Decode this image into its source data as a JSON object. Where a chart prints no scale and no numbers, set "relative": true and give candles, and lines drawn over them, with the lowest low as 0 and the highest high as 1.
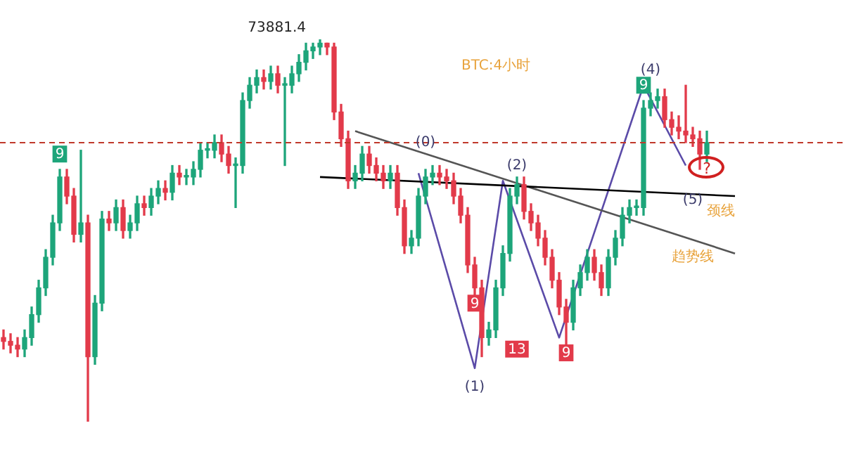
{
  "chart_data": {
    "type": "candlestick",
    "relative": true,
    "legend": false,
    "categories": [
      null,
      null,
      null,
      null,
      null,
      null,
      null,
      null,
      null,
      null,
      null,
      null,
      null,
      null,
      null,
      null,
      null,
      null,
      null,
      null,
      null,
      null,
      null,
      null,
      null,
      null,
      null,
      null,
      null,
      null,
      null,
      null,
      null,
      null,
      null,
      null,
      null,
      null,
      null,
      null,
      null,
      null,
      null,
      null,
      null,
      null,
      null,
      null,
      null,
      null,
      null,
      null,
      null,
      null,
      null,
      null,
      null,
      null,
      null,
      null,
      null,
      null,
      null,
      null,
      null,
      null,
      null,
      null,
      null,
      null,
      null,
      null,
      null,
      null,
      null,
      null,
      null,
      null,
      null,
      null,
      null,
      null,
      null,
      null,
      null,
      null,
      null,
      null,
      null,
      null,
      null,
      null,
      null,
      null,
      null,
      null,
      null,
      null,
      null,
      null,
      null,
      null,
      null,
      null,
      null,
      null,
      null,
      null,
      null,
      null,
      null,
      null,
      null,
      null,
      null,
      null,
      null,
      null,
      null,
      null
    ],
    "ohlc": [
      [
        0.22,
        0.24,
        0.19,
        0.21
      ],
      [
        0.21,
        0.23,
        0.18,
        0.2
      ],
      [
        0.2,
        0.22,
        0.17,
        0.19
      ],
      [
        0.19,
        0.24,
        0.17,
        0.22
      ],
      [
        0.22,
        0.3,
        0.2,
        0.28
      ],
      [
        0.28,
        0.37,
        0.26,
        0.35
      ],
      [
        0.35,
        0.45,
        0.33,
        0.43
      ],
      [
        0.43,
        0.54,
        0.41,
        0.52
      ],
      [
        0.52,
        0.66,
        0.5,
        0.64
      ],
      [
        0.64,
        0.66,
        0.57,
        0.59
      ],
      [
        0.59,
        0.61,
        0.47,
        0.49
      ],
      [
        0.49,
        0.71,
        0.47,
        0.52
      ],
      [
        0.52,
        0.54,
        0,
        0.17
      ],
      [
        0.17,
        0.33,
        0.15,
        0.31
      ],
      [
        0.31,
        0.55,
        0.29,
        0.53
      ],
      [
        0.53,
        0.55,
        0.5,
        0.52
      ],
      [
        0.52,
        0.58,
        0.5,
        0.56
      ],
      [
        0.56,
        0.58,
        0.48,
        0.5
      ],
      [
        0.5,
        0.54,
        0.48,
        0.52
      ],
      [
        0.52,
        0.59,
        0.5,
        0.57
      ],
      [
        0.57,
        0.59,
        0.54,
        0.56
      ],
      [
        0.56,
        0.61,
        0.54,
        0.59
      ],
      [
        0.59,
        0.63,
        0.57,
        0.61
      ],
      [
        0.61,
        0.63,
        0.58,
        0.6
      ],
      [
        0.6,
        0.67,
        0.58,
        0.65
      ],
      [
        0.65,
        0.67,
        0.62,
        0.64
      ],
      [
        0.64,
        0.66,
        0.62,
        0.64
      ],
      [
        0.64,
        0.68,
        0.62,
        0.66
      ],
      [
        0.66,
        0.73,
        0.64,
        0.71
      ],
      [
        0.71,
        0.73,
        0.69,
        0.71
      ],
      [
        0.71,
        0.75,
        0.69,
        0.73
      ],
      [
        0.73,
        0.75,
        0.68,
        0.7
      ],
      [
        0.7,
        0.72,
        0.65,
        0.67
      ],
      [
        0.67,
        0.69,
        0.56,
        0.67
      ],
      [
        0.67,
        0.86,
        0.65,
        0.84
      ],
      [
        0.84,
        0.9,
        0.82,
        0.88
      ],
      [
        0.88,
        0.92,
        0.86,
        0.9
      ],
      [
        0.9,
        0.92,
        0.87,
        0.89
      ],
      [
        0.89,
        0.93,
        0.87,
        0.91
      ],
      [
        0.91,
        0.93,
        0.86,
        0.88
      ],
      [
        0.88,
        0.9,
        0.67,
        0.88
      ],
      [
        0.88,
        0.93,
        0.86,
        0.91
      ],
      [
        0.91,
        0.96,
        0.89,
        0.94
      ],
      [
        0.94,
        0.99,
        0.92,
        0.97
      ],
      [
        0.97,
        0.99,
        0.95,
        0.98
      ],
      [
        0.98,
        1,
        0.96,
        0.99
      ],
      [
        0.99,
        0.99,
        0.96,
        0.98
      ],
      [
        0.98,
        0.99,
        0.79,
        0.81
      ],
      [
        0.81,
        0.83,
        0.72,
        0.74
      ],
      [
        0.74,
        0.76,
        0.61,
        0.63
      ],
      [
        0.63,
        0.67,
        0.61,
        0.65
      ],
      [
        0.65,
        0.72,
        0.63,
        0.7
      ],
      [
        0.7,
        0.72,
        0.65,
        0.67
      ],
      [
        0.67,
        0.69,
        0.63,
        0.65
      ],
      [
        0.65,
        0.67,
        0.61,
        0.63
      ],
      [
        0.63,
        0.67,
        0.61,
        0.65
      ],
      [
        0.65,
        0.67,
        0.54,
        0.56
      ],
      [
        0.56,
        0.58,
        0.44,
        0.46
      ],
      [
        0.46,
        0.5,
        0.44,
        0.48
      ],
      [
        0.48,
        0.61,
        0.46,
        0.59
      ],
      [
        0.59,
        0.66,
        0.57,
        0.64
      ],
      [
        0.64,
        0.67,
        0.62,
        0.65
      ],
      [
        0.65,
        0.67,
        0.62,
        0.64
      ],
      [
        0.64,
        0.66,
        0.61,
        0.63
      ],
      [
        0.63,
        0.65,
        0.57,
        0.59
      ],
      [
        0.59,
        0.61,
        0.52,
        0.54
      ],
      [
        0.54,
        0.56,
        0.39,
        0.41
      ],
      [
        0.41,
        0.43,
        0.33,
        0.35
      ],
      [
        0.35,
        0.37,
        0.17,
        0.22
      ],
      [
        0.22,
        0.26,
        0.2,
        0.24
      ],
      [
        0.24,
        0.37,
        0.22,
        0.35
      ],
      [
        0.35,
        0.46,
        0.33,
        0.44
      ],
      [
        0.44,
        0.61,
        0.42,
        0.59
      ],
      [
        0.59,
        0.64,
        0.57,
        0.62
      ],
      [
        0.62,
        0.64,
        0.53,
        0.55
      ],
      [
        0.55,
        0.57,
        0.5,
        0.52
      ],
      [
        0.52,
        0.54,
        0.46,
        0.48
      ],
      [
        0.48,
        0.5,
        0.41,
        0.43
      ],
      [
        0.43,
        0.45,
        0.35,
        0.37
      ],
      [
        0.37,
        0.39,
        0.28,
        0.3
      ],
      [
        0.3,
        0.32,
        0.2,
        0.26
      ],
      [
        0.26,
        0.37,
        0.24,
        0.35
      ],
      [
        0.35,
        0.41,
        0.33,
        0.39
      ],
      [
        0.39,
        0.45,
        0.37,
        0.43
      ],
      [
        0.43,
        0.45,
        0.37,
        0.39
      ],
      [
        0.39,
        0.41,
        0.33,
        0.35
      ],
      [
        0.35,
        0.45,
        0.33,
        0.43
      ],
      [
        0.43,
        0.5,
        0.41,
        0.48
      ],
      [
        0.48,
        0.56,
        0.46,
        0.54
      ],
      [
        0.54,
        0.58,
        0.52,
        0.56
      ],
      [
        0.56,
        0.58,
        0.54,
        0.56
      ],
      [
        0.56,
        0.84,
        0.54,
        0.82
      ],
      [
        0.82,
        0.86,
        0.8,
        0.84
      ],
      [
        0.84,
        0.87,
        0.82,
        0.85
      ],
      [
        0.85,
        0.87,
        0.77,
        0.79
      ],
      [
        0.79,
        0.81,
        0.75,
        0.77
      ],
      [
        0.77,
        0.8,
        0.74,
        0.76
      ],
      [
        0.76,
        0.88,
        0.73,
        0.75
      ],
      [
        0.75,
        0.77,
        0.72,
        0.74
      ],
      [
        0.74,
        0.76,
        0.66,
        0.7
      ],
      [
        0.7,
        0.76,
        0.68,
        0.73
      ],
      null,
      null,
      null,
      null,
      null,
      null,
      null,
      null,
      null,
      null,
      null,
      null,
      null,
      null,
      null,
      null,
      null,
      null,
      null
    ],
    "series": [
      {
        "type": "line",
        "color": "#000000",
        "values": [
          null,
          null,
          null,
          null,
          null,
          null,
          null,
          null,
          null,
          null,
          null,
          null,
          null,
          null,
          null,
          null,
          null,
          null,
          null,
          null,
          null,
          null,
          null,
          null,
          null,
          null,
          null,
          null,
          null,
          null,
          null,
          null,
          null,
          null,
          null,
          null,
          null,
          null,
          null,
          null,
          null,
          null,
          null,
          null,
          null,
          0.64,
          null,
          null,
          null,
          null,
          null,
          null,
          null,
          null,
          null,
          null,
          null,
          null,
          null,
          null,
          null,
          null,
          null,
          null,
          null,
          null,
          null,
          null,
          null,
          null,
          null,
          null,
          null,
          null,
          null,
          null,
          null,
          null,
          null,
          null,
          null,
          null,
          null,
          null,
          null,
          null,
          null,
          null,
          null,
          null,
          null,
          null,
          null,
          null,
          null,
          null,
          null,
          null,
          null,
          null,
          null,
          null,
          null,
          null,
          0.59,
          null,
          null,
          null,
          null,
          null,
          null,
          null,
          null,
          null,
          null,
          null,
          null,
          null,
          null,
          null
        ]
      },
      {
        "type": "line",
        "color": "#555555",
        "values": [
          null,
          null,
          null,
          null,
          null,
          null,
          null,
          null,
          null,
          null,
          null,
          null,
          null,
          null,
          null,
          null,
          null,
          null,
          null,
          null,
          null,
          null,
          null,
          null,
          null,
          null,
          null,
          null,
          null,
          null,
          null,
          null,
          null,
          null,
          null,
          null,
          null,
          null,
          null,
          null,
          null,
          null,
          null,
          null,
          null,
          null,
          null,
          null,
          null,
          null,
          0.76,
          null,
          null,
          null,
          null,
          null,
          null,
          null,
          null,
          null,
          null,
          null,
          null,
          null,
          null,
          null,
          null,
          null,
          null,
          null,
          null,
          null,
          null,
          null,
          null,
          null,
          null,
          null,
          null,
          null,
          null,
          null,
          null,
          null,
          null,
          null,
          null,
          null,
          null,
          null,
          null,
          null,
          null,
          null,
          null,
          null,
          null,
          null,
          null,
          null,
          null,
          null,
          null,
          null,
          0.44,
          null,
          null,
          null,
          null,
          null,
          null,
          null,
          null,
          null,
          null,
          null,
          null,
          null,
          null,
          null
        ]
      },
      {
        "type": "line",
        "color": "#5b4ba8",
        "values": [
          null,
          null,
          null,
          null,
          null,
          null,
          null,
          null,
          null,
          null,
          null,
          null,
          null,
          null,
          null,
          null,
          null,
          null,
          null,
          null,
          null,
          null,
          null,
          null,
          null,
          null,
          null,
          null,
          null,
          null,
          null,
          null,
          null,
          null,
          null,
          null,
          null,
          null,
          null,
          null,
          null,
          null,
          null,
          null,
          null,
          null,
          null,
          null,
          null,
          null,
          null,
          null,
          null,
          null,
          null,
          null,
          null,
          null,
          null,
          0.65,
          null,
          null,
          null,
          null,
          null,
          null,
          null,
          0.14,
          null,
          null,
          null,
          0.63,
          null,
          null,
          null,
          null,
          null,
          null,
          null,
          0.22,
          null,
          null,
          null,
          null,
          null,
          null,
          null,
          null,
          null,
          null,
          null,
          0.88,
          null,
          null,
          null,
          null,
          null,
          0.67,
          null,
          null,
          null,
          null,
          null,
          null,
          null,
          null,
          null,
          null,
          null,
          null,
          null,
          null,
          null,
          null,
          null,
          null,
          null,
          null,
          null,
          null
        ]
      }
    ],
    "ref_lines": [
      {
        "axis": "y",
        "value": 0.73,
        "color": "#c0392b",
        "line_style": "dashed"
      }
    ],
    "annotations": [
      "73881.4",
      "BTC:4小时",
      "(0)",
      "(1)",
      "(2)",
      "(4)",
      "(5)",
      "?",
      "颈线",
      "趋势线",
      "9",
      "9",
      "13",
      "9",
      "9"
    ]
  }
}
